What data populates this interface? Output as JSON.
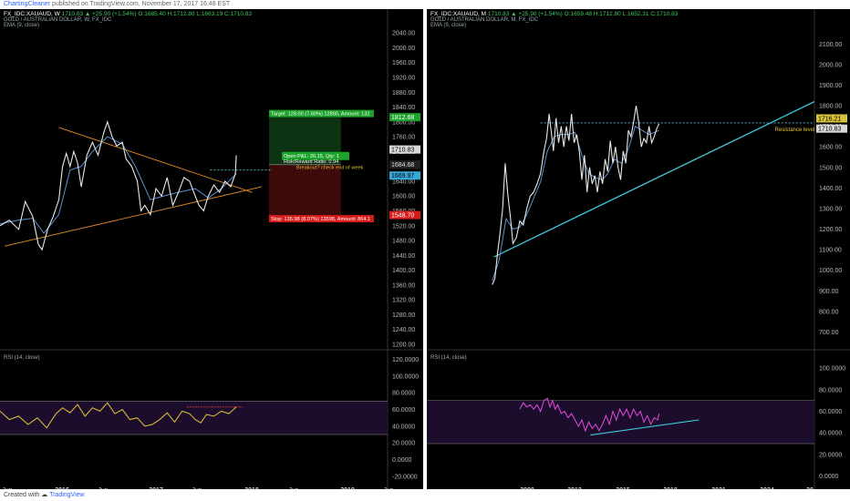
{
  "header": {
    "author": "ChartingCleaner",
    "published": "published on TradingView.com, November 17, 2017 16:48 EST"
  },
  "footer": {
    "created_with": "Created with",
    "brand": "TradingView"
  },
  "colors": {
    "price": "#e8e8e8",
    "ema": "#5b8fd1",
    "rsi_left": "#e5c53a",
    "rsi_right": "#e04ce0",
    "trend_left": "#e08a2a",
    "trend_right": "#3cc8d8",
    "target": "#1ca32a",
    "stop": "#d81c1c"
  },
  "chart_data": [
    {
      "type": "line",
      "panel": "left",
      "symbol_line": "FX_IDC:XAUAUD, W",
      "ohlc_line": "1710.83 ▲ +25.90 (+1.54%) O:1685.40 H:1712.80 L:1663.19 C:1710.83",
      "title": "GOLD / AUSTRALIAN DOLLAR, W, FX_IDC",
      "indicator": "EMA (9, close)",
      "x_ticks": [
        "Jun",
        "2016",
        "Jun",
        "2017",
        "Jun",
        "2018",
        "Jun",
        "2019",
        "Jun"
      ],
      "y_ticks": [
        "2040.00",
        "2000.00",
        "1960.00",
        "1920.00",
        "1880.00",
        "1840.00",
        "1800.00",
        "1760.00",
        "1720.00",
        "1680.00",
        "1640.00",
        "1600.00",
        "1560.00",
        "1520.00",
        "1480.00",
        "1440.00",
        "1400.00",
        "1360.00",
        "1320.00",
        "1280.00",
        "1240.00",
        "1200.00"
      ],
      "ylim": [
        1200,
        2060
      ],
      "x_range": [
        2015.35,
        2019.5
      ],
      "price_series": [
        [
          2015.35,
          1520
        ],
        [
          2015.45,
          1535
        ],
        [
          2015.55,
          1510
        ],
        [
          2015.62,
          1585
        ],
        [
          2015.7,
          1545
        ],
        [
          2015.76,
          1470
        ],
        [
          2015.8,
          1455
        ],
        [
          2015.86,
          1510
        ],
        [
          2015.92,
          1545
        ],
        [
          2015.98,
          1590
        ],
        [
          2016.02,
          1680
        ],
        [
          2016.06,
          1715
        ],
        [
          2016.1,
          1680
        ],
        [
          2016.14,
          1720
        ],
        [
          2016.18,
          1690
        ],
        [
          2016.22,
          1625
        ],
        [
          2016.28,
          1710
        ],
        [
          2016.34,
          1745
        ],
        [
          2016.4,
          1710
        ],
        [
          2016.46,
          1770
        ],
        [
          2016.5,
          1800
        ],
        [
          2016.55,
          1760
        ],
        [
          2016.6,
          1735
        ],
        [
          2016.66,
          1745
        ],
        [
          2016.7,
          1700
        ],
        [
          2016.76,
          1680
        ],
        [
          2016.82,
          1640
        ],
        [
          2016.86,
          1560
        ],
        [
          2016.9,
          1575
        ],
        [
          2016.96,
          1550
        ],
        [
          2017.02,
          1620
        ],
        [
          2017.08,
          1600
        ],
        [
          2017.14,
          1650
        ],
        [
          2017.2,
          1575
        ],
        [
          2017.26,
          1610
        ],
        [
          2017.32,
          1650
        ],
        [
          2017.38,
          1640
        ],
        [
          2017.44,
          1600
        ],
        [
          2017.48,
          1575
        ],
        [
          2017.53,
          1560
        ],
        [
          2017.58,
          1600
        ],
        [
          2017.64,
          1630
        ],
        [
          2017.7,
          1610
        ],
        [
          2017.76,
          1640
        ],
        [
          2017.82,
          1625
        ],
        [
          2017.87,
          1660
        ],
        [
          2017.88,
          1710
        ]
      ],
      "ema_series": [
        [
          2015.35,
          1525
        ],
        [
          2015.55,
          1535
        ],
        [
          2015.7,
          1540
        ],
        [
          2015.82,
          1500
        ],
        [
          2015.98,
          1550
        ],
        [
          2016.1,
          1670
        ],
        [
          2016.22,
          1680
        ],
        [
          2016.34,
          1720
        ],
        [
          2016.5,
          1760
        ],
        [
          2016.66,
          1740
        ],
        [
          2016.8,
          1680
        ],
        [
          2016.96,
          1590
        ],
        [
          2017.1,
          1600
        ],
        [
          2017.26,
          1610
        ],
        [
          2017.44,
          1620
        ],
        [
          2017.58,
          1595
        ],
        [
          2017.72,
          1620
        ],
        [
          2017.88,
          1660
        ]
      ],
      "trendlines": [
        [
          [
            2015.4,
            1465
          ],
          [
            2018.15,
            1625
          ]
        ],
        [
          [
            2015.98,
            1785
          ],
          [
            2018.05,
            1610
          ]
        ]
      ],
      "levels": [
        {
          "y": 1669.97,
          "label": "1669.97"
        }
      ],
      "price_labels": [
        "1812.68",
        "1710.83",
        "1684.68",
        "1669.97",
        "1548.70"
      ],
      "trade": {
        "entry": 1684.68,
        "target": 1812.68,
        "stop": 1548.7,
        "target_label": "Target: 128.00 (7.60%) 12800, Amount: 132",
        "stop_label": "Stop: 135.98 (8.07%) 13598, Amount: 864.1",
        "pnl_label": "Open P&L: 26.15, Qty: 1",
        "ratio_label": "Risk/Reward Ratio: 0.94",
        "note": "Breakout? check end of week"
      },
      "rsi": {
        "title": "RSI (14, close)",
        "y_ticks": [
          "120.0000",
          "100.0000",
          "80.0000",
          "60.0000",
          "40.0000",
          "20.0000",
          "0.0000",
          "-20.0000"
        ],
        "ylim": [
          -30,
          125
        ],
        "band": [
          30,
          70
        ],
        "levels": [
          {
            "y": 63,
            "x0": 2017.35,
            "x1": 2017.95
          }
        ],
        "series": [
          [
            2015.35,
            58
          ],
          [
            2015.45,
            48
          ],
          [
            2015.55,
            52
          ],
          [
            2015.65,
            42
          ],
          [
            2015.75,
            50
          ],
          [
            2015.85,
            38
          ],
          [
            2015.95,
            55
          ],
          [
            2016.02,
            62
          ],
          [
            2016.1,
            56
          ],
          [
            2016.18,
            66
          ],
          [
            2016.26,
            52
          ],
          [
            2016.34,
            62
          ],
          [
            2016.42,
            58
          ],
          [
            2016.5,
            68
          ],
          [
            2016.58,
            55
          ],
          [
            2016.66,
            60
          ],
          [
            2016.74,
            48
          ],
          [
            2016.82,
            50
          ],
          [
            2016.9,
            40
          ],
          [
            2016.98,
            42
          ],
          [
            2017.06,
            48
          ],
          [
            2017.14,
            56
          ],
          [
            2017.22,
            45
          ],
          [
            2017.3,
            58
          ],
          [
            2017.38,
            55
          ],
          [
            2017.44,
            48
          ],
          [
            2017.5,
            44
          ],
          [
            2017.56,
            54
          ],
          [
            2017.64,
            52
          ],
          [
            2017.72,
            58
          ],
          [
            2017.8,
            55
          ],
          [
            2017.88,
            63
          ]
        ]
      }
    },
    {
      "type": "line",
      "panel": "right",
      "symbol_line": "FX_IDC:XAUAUD, M",
      "ohlc_line": "1710.83 ▲ +25.90 (+1.54%) O:1659.48 H:1712.80 L:1652.31 C:1710.83",
      "title": "GOLD / AUSTRALIAN DOLLAR, M, FX_IDC",
      "indicator": "EMA (9, close)",
      "x_ticks": [
        "2009",
        "2012",
        "2015",
        "2018",
        "2021",
        "2024",
        "20"
      ],
      "y_ticks": [
        "2100.00",
        "2000.00",
        "1900.00",
        "1800.00",
        "1700.00",
        "1600.00",
        "1500.00",
        "1400.00",
        "1300.00",
        "1200.00",
        "1100.00",
        "1000.00",
        "900.00",
        "800.00",
        "700.00"
      ],
      "ylim": [
        640,
        2190
      ],
      "x_range": [
        2004.4,
        2026.9
      ],
      "price_series": [
        [
          2008.2,
          930
        ],
        [
          2008.35,
          960
        ],
        [
          2008.5,
          1080
        ],
        [
          2008.65,
          1180
        ],
        [
          2008.8,
          1300
        ],
        [
          2008.95,
          1520
        ],
        [
          2009.1,
          1370
        ],
        [
          2009.25,
          1260
        ],
        [
          2009.4,
          1130
        ],
        [
          2009.6,
          1160
        ],
        [
          2009.8,
          1240
        ],
        [
          2010.0,
          1220
        ],
        [
          2010.2,
          1300
        ],
        [
          2010.4,
          1360
        ],
        [
          2010.6,
          1380
        ],
        [
          2010.8,
          1420
        ],
        [
          2011.0,
          1470
        ],
        [
          2011.2,
          1580
        ],
        [
          2011.35,
          1640
        ],
        [
          2011.5,
          1760
        ],
        [
          2011.6,
          1690
        ],
        [
          2011.75,
          1580
        ],
        [
          2011.9,
          1740
        ],
        [
          2012.05,
          1620
        ],
        [
          2012.2,
          1700
        ],
        [
          2012.35,
          1600
        ],
        [
          2012.5,
          1700
        ],
        [
          2012.65,
          1630
        ],
        [
          2012.8,
          1760
        ],
        [
          2012.95,
          1620
        ],
        [
          2013.1,
          1660
        ],
        [
          2013.25,
          1580
        ],
        [
          2013.4,
          1440
        ],
        [
          2013.55,
          1560
        ],
        [
          2013.7,
          1380
        ],
        [
          2013.85,
          1500
        ],
        [
          2014.0,
          1420
        ],
        [
          2014.15,
          1460
        ],
        [
          2014.3,
          1380
        ],
        [
          2014.45,
          1480
        ],
        [
          2014.6,
          1420
        ],
        [
          2014.75,
          1540
        ],
        [
          2014.9,
          1480
        ],
        [
          2015.05,
          1630
        ],
        [
          2015.2,
          1520
        ],
        [
          2015.35,
          1600
        ],
        [
          2015.5,
          1500
        ],
        [
          2015.65,
          1440
        ],
        [
          2015.8,
          1580
        ],
        [
          2015.95,
          1520
        ],
        [
          2016.1,
          1680
        ],
        [
          2016.25,
          1650
        ],
        [
          2016.4,
          1720
        ],
        [
          2016.55,
          1800
        ],
        [
          2016.7,
          1720
        ],
        [
          2016.85,
          1600
        ],
        [
          2017.0,
          1640
        ],
        [
          2017.15,
          1620
        ],
        [
          2017.3,
          1700
        ],
        [
          2017.45,
          1620
        ],
        [
          2017.6,
          1650
        ],
        [
          2017.75,
          1690
        ],
        [
          2017.88,
          1712
        ]
      ],
      "ema_series": [
        [
          2008.2,
          950
        ],
        [
          2008.6,
          1050
        ],
        [
          2009.0,
          1250
        ],
        [
          2009.4,
          1200
        ],
        [
          2009.8,
          1210
        ],
        [
          2010.2,
          1270
        ],
        [
          2010.6,
          1350
        ],
        [
          2011.0,
          1430
        ],
        [
          2011.4,
          1580
        ],
        [
          2011.8,
          1650
        ],
        [
          2012.2,
          1660
        ],
        [
          2012.6,
          1660
        ],
        [
          2013.0,
          1670
        ],
        [
          2013.4,
          1560
        ],
        [
          2013.8,
          1470
        ],
        [
          2014.2,
          1450
        ],
        [
          2014.6,
          1440
        ],
        [
          2014.9,
          1470
        ],
        [
          2015.3,
          1540
        ],
        [
          2015.7,
          1520
        ],
        [
          2016.1,
          1590
        ],
        [
          2016.5,
          1700
        ],
        [
          2016.9,
          1680
        ],
        [
          2017.3,
          1660
        ],
        [
          2017.88,
          1680
        ]
      ],
      "trendlines": [
        [
          [
            2008.3,
            1065
          ],
          [
            2026.9,
            1820
          ]
        ]
      ],
      "levels": [
        {
          "y": 1716.21,
          "label": "1716.21",
          "x0": 2011.0,
          "x1": 2026.9
        }
      ],
      "resistance_label": "Resistance level",
      "price_labels": [
        "1716.21",
        "1710.83"
      ],
      "rsi": {
        "title": "RSI (14, close)",
        "y_ticks": [
          "100.0000",
          "80.0000",
          "60.0000",
          "40.0000",
          "20.0000",
          "0.0000"
        ],
        "ylim": [
          -8,
          112
        ],
        "band": [
          30,
          70
        ],
        "trendline": [
          [
            2013.9,
            38
          ],
          [
            2020.2,
            52
          ]
        ],
        "series": [
          [
            2009.8,
            62
          ],
          [
            2010.0,
            68
          ],
          [
            2010.2,
            64
          ],
          [
            2010.4,
            66
          ],
          [
            2010.6,
            62
          ],
          [
            2010.8,
            66
          ],
          [
            2011.0,
            60
          ],
          [
            2011.2,
            70
          ],
          [
            2011.4,
            72
          ],
          [
            2011.55,
            64
          ],
          [
            2011.7,
            70
          ],
          [
            2011.85,
            62
          ],
          [
            2012.0,
            66
          ],
          [
            2012.2,
            58
          ],
          [
            2012.4,
            60
          ],
          [
            2012.6,
            54
          ],
          [
            2012.8,
            58
          ],
          [
            2013.0,
            52
          ],
          [
            2013.2,
            46
          ],
          [
            2013.4,
            52
          ],
          [
            2013.6,
            42
          ],
          [
            2013.8,
            50
          ],
          [
            2014.0,
            44
          ],
          [
            2014.2,
            48
          ],
          [
            2014.4,
            42
          ],
          [
            2014.6,
            48
          ],
          [
            2014.8,
            56
          ],
          [
            2015.0,
            48
          ],
          [
            2015.2,
            60
          ],
          [
            2015.4,
            52
          ],
          [
            2015.6,
            62
          ],
          [
            2015.8,
            56
          ],
          [
            2016.0,
            62
          ],
          [
            2016.2,
            54
          ],
          [
            2016.4,
            62
          ],
          [
            2016.6,
            56
          ],
          [
            2016.8,
            60
          ],
          [
            2017.0,
            50
          ],
          [
            2017.2,
            56
          ],
          [
            2017.4,
            48
          ],
          [
            2017.6,
            54
          ],
          [
            2017.8,
            52
          ],
          [
            2017.88,
            58
          ]
        ]
      }
    }
  ]
}
